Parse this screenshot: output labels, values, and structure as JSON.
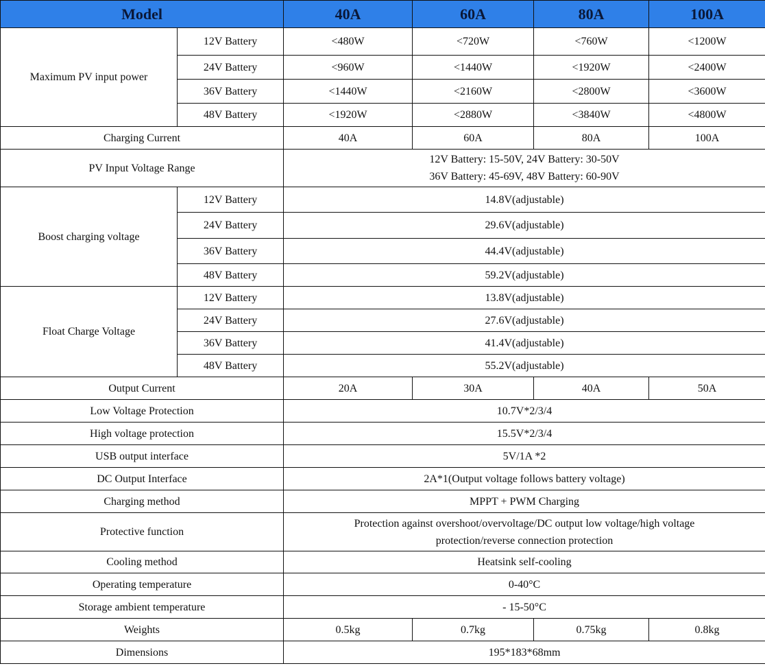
{
  "colors": {
    "header_bg": "#2f80e8",
    "header_text": "#0a1838",
    "border": "#111111"
  },
  "header": {
    "model": "Model",
    "cols": [
      "40A",
      "60A",
      "80A",
      "100A"
    ]
  },
  "max_pv": {
    "label": "Maximum PV input power",
    "rows": [
      {
        "battery": "12V Battery",
        "values": [
          "<480W",
          "<720W",
          "<760W",
          "<1200W"
        ]
      },
      {
        "battery": "24V Battery",
        "values": [
          "<960W",
          "<1440W",
          "<1920W",
          "<2400W"
        ]
      },
      {
        "battery": "36V Battery",
        "values": [
          "<1440W",
          "<2160W",
          "<2800W",
          "<3600W"
        ]
      },
      {
        "battery": "48V Battery",
        "values": [
          "<1920W",
          "<2880W",
          "<3840W",
          "<4800W"
        ]
      }
    ]
  },
  "charging_current": {
    "label": "Charging Current",
    "values": [
      "40A",
      "60A",
      "80A",
      "100A"
    ]
  },
  "pv_range": {
    "label": "PV Input Voltage Range",
    "lines": [
      "12V Battery: 15-50V, 24V Battery: 30-50V",
      "36V Battery: 45-69V, 48V Battery: 60-90V"
    ]
  },
  "boost": {
    "label": "Boost charging voltage",
    "rows": [
      {
        "battery": "12V Battery",
        "value": "14.8V(adjustable)"
      },
      {
        "battery": "24V Battery",
        "value": "29.6V(adjustable)"
      },
      {
        "battery": "36V Battery",
        "value": "44.4V(adjustable)"
      },
      {
        "battery": "48V Battery",
        "value": "59.2V(adjustable)"
      }
    ]
  },
  "float": {
    "label": "Float Charge Voltage",
    "rows": [
      {
        "battery": "12V Battery",
        "value": "13.8V(adjustable)"
      },
      {
        "battery": "24V Battery",
        "value": "27.6V(adjustable)"
      },
      {
        "battery": "36V Battery",
        "value": "41.4V(adjustable)"
      },
      {
        "battery": "48V Battery",
        "value": "55.2V(adjustable)"
      }
    ]
  },
  "output_current": {
    "label": "Output Current",
    "values": [
      "20A",
      "30A",
      "40A",
      "50A"
    ]
  },
  "low_voltage": {
    "label": "Low Voltage Protection",
    "value": "10.7V*2/3/4"
  },
  "high_voltage": {
    "label": "High voltage protection",
    "value": "15.5V*2/3/4"
  },
  "usb": {
    "label": "USB output interface",
    "value": "5V/1A *2"
  },
  "dc": {
    "label": "DC Output Interface",
    "value": "2A*1(Output voltage follows battery voltage)"
  },
  "charging_method": {
    "label": "Charging method",
    "value": "MPPT + PWM Charging"
  },
  "protective": {
    "label": "Protective function",
    "lines": [
      "Protection against overshoot/overvoltage/DC output low voltage/high voltage",
      "protection/reverse connection protection"
    ]
  },
  "cooling": {
    "label": "Cooling method",
    "value": "Heatsink self-cooling"
  },
  "operating_temp": {
    "label": "Operating temperature",
    "value": "0-40°C"
  },
  "storage_temp": {
    "label": "Storage ambient temperature",
    "value": "- 15-50°C"
  },
  "weights": {
    "label": "Weights",
    "values": [
      "0.5kg",
      "0.7kg",
      "0.75kg",
      "0.8kg"
    ]
  },
  "dimensions": {
    "label": "Dimensions",
    "value": "195*183*68mm"
  }
}
